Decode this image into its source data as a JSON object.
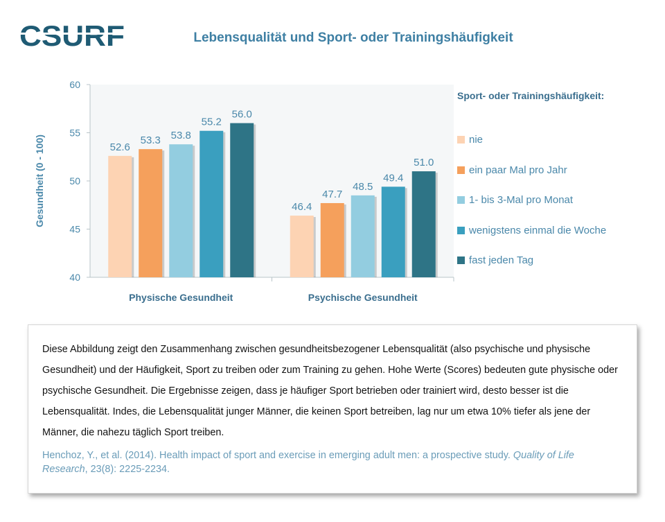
{
  "logo": {
    "text": "CSURF"
  },
  "header": {
    "title": "Lebensqualität und Sport- oder Trainingshäufigkeit"
  },
  "colors": {
    "nie": "#fdd3b3",
    "ein_paar_mal": "#f5a05c",
    "monat": "#93cde0",
    "woche": "#3a9fbf",
    "taeglich": "#2e7486",
    "axis_text": "#4a88aa",
    "title": "#3e7fa3"
  },
  "chart_data": {
    "type": "bar",
    "title": "Lebensqualität und Sport- oder Trainingshäufigkeit",
    "ylabel": "Gesundheit  (0 - 100)",
    "xlabel": "",
    "ylim": [
      40,
      60
    ],
    "yticks": [
      40,
      45,
      50,
      55,
      60
    ],
    "categories": [
      "Physische Gesundheit",
      "Psychische Gesundheit"
    ],
    "legend_title": "Sport- oder Trainingshäufigkeit:",
    "legend_position": "right",
    "grid": false,
    "series": [
      {
        "name": "nie",
        "values": [
          52.6,
          46.4
        ],
        "labels": [
          "52.6",
          "46.4"
        ],
        "color": "#fdd3b3"
      },
      {
        "name": "ein paar Mal pro Jahr",
        "values": [
          53.3,
          47.7
        ],
        "labels": [
          "53.3",
          "47.7"
        ],
        "color": "#f5a05c"
      },
      {
        "name": "1- bis 3-Mal pro Monat",
        "values": [
          53.8,
          48.5
        ],
        "labels": [
          "53.8",
          "48.5"
        ],
        "color": "#93cde0"
      },
      {
        "name": "wenigstens einmal die Woche",
        "values": [
          55.2,
          49.4
        ],
        "labels": [
          "55.2",
          "49.4"
        ],
        "color": "#3a9fbf"
      },
      {
        "name": "fast jeden Tag",
        "values": [
          56.0,
          51.0
        ],
        "labels": [
          "56.0",
          "51.0"
        ],
        "color": "#2e7486"
      }
    ]
  },
  "note": {
    "text": "Diese Abbildung zeigt den Zusammenhang zwischen gesundheitsbezogener Lebensqualität (also psychische und physische Gesundheit) und der Häufigkeit, Sport zu treiben oder zum Training zu gehen. Hohe Werte (Scores) bedeuten gute physische oder psychische Gesundheit.  Die Ergebnisse zeigen, dass je häufiger Sport betrieben oder trainiert wird, desto besser ist die Lebensqualität. Indes, die Lebensqualität junger Männer, die keinen Sport betreiben, lag nur um etwa 10% tiefer als jene der Männer, die nahezu täglich Sport treiben.",
    "reference": {
      "authors": "Henchoz, Y., et al. (2014). Health impact of sport and exercise in emerging adult men: a prospective study. ",
      "journal": "Quality of Life Research",
      "details": ", 23(8): 2225-2234."
    }
  }
}
